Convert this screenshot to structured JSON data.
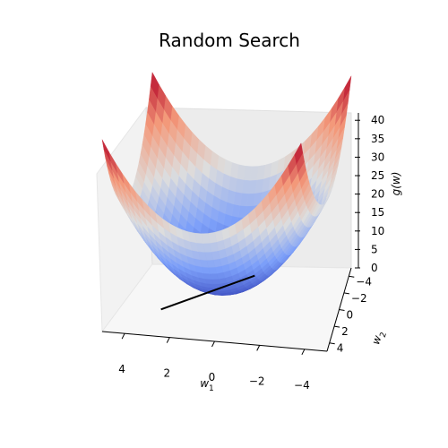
{
  "chart_data": {
    "type": "surface3d",
    "title": "Random Search",
    "xlabel": "w_1",
    "ylabel": "w_2",
    "zlabel": "g(w)",
    "function": "w1^2 + w2^2 + 2",
    "xlim": [
      -5,
      5
    ],
    "ylim": [
      -5,
      5
    ],
    "zlim": [
      0,
      42
    ],
    "x_ticks": [
      4,
      2,
      0,
      -2,
      -4
    ],
    "y_ticks": [
      -4,
      -2,
      0,
      2,
      4
    ],
    "z_ticks": [
      0,
      5,
      10,
      15,
      20,
      25,
      30,
      35,
      40
    ],
    "colormap": "coolwarm",
    "search_path": [
      [
        2.9,
        1.6
      ],
      [
        -0.5,
        -3.6
      ]
    ]
  }
}
